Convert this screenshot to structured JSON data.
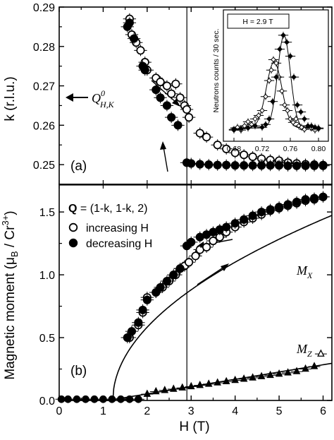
{
  "chart_data": [
    {
      "panel": "(a)",
      "type": "scatter",
      "xlabel": "",
      "ylabel": "k (r.l.u.)",
      "xlim": [
        0,
        6.2
      ],
      "ylim": [
        0.245,
        0.29
      ],
      "yticks": [
        "0.25",
        "0.26",
        "0.27",
        "0.28",
        "0.29"
      ],
      "annotation_main": "Q",
      "annotation_sup": "0",
      "annotation_sub": "H,K",
      "series": [
        {
          "marker": "open-circle",
          "points": [
            [
              1.6,
              0.287
            ],
            [
              1.65,
              0.283
            ],
            [
              1.75,
              0.281
            ],
            [
              1.85,
              0.279
            ],
            [
              1.95,
              0.276
            ],
            [
              2.0,
              0.274
            ],
            [
              2.2,
              0.272
            ],
            [
              2.3,
              0.271
            ],
            [
              2.45,
              0.27
            ],
            [
              2.55,
              0.268
            ],
            [
              2.65,
              0.2705
            ],
            [
              2.75,
              0.267
            ],
            [
              2.85,
              0.265
            ],
            [
              2.9,
              0.264
            ],
            [
              2.95,
              0.262
            ],
            [
              3.2,
              0.258
            ],
            [
              3.35,
              0.257
            ],
            [
              3.6,
              0.255
            ],
            [
              3.8,
              0.254
            ],
            [
              4.0,
              0.253
            ],
            [
              4.2,
              0.2525
            ],
            [
              4.4,
              0.252
            ],
            [
              4.6,
              0.2515
            ],
            [
              4.8,
              0.2512
            ],
            [
              5.0,
              0.251
            ],
            [
              5.2,
              0.2505
            ],
            [
              5.4,
              0.2503
            ],
            [
              5.6,
              0.2501
            ],
            [
              5.8,
              0.25
            ],
            [
              6.0,
              0.2499
            ]
          ]
        },
        {
          "marker": "filled-circle",
          "points": [
            [
              1.55,
              0.285
            ],
            [
              1.6,
              0.286
            ],
            [
              1.7,
              0.282
            ],
            [
              1.9,
              0.275
            ],
            [
              1.95,
              0.274
            ],
            [
              2.2,
              0.269
            ],
            [
              2.3,
              0.267
            ],
            [
              2.45,
              0.265
            ],
            [
              2.55,
              0.262
            ],
            [
              2.7,
              0.26
            ],
            [
              2.9,
              0.2505
            ],
            [
              3.0,
              0.2503
            ],
            [
              3.2,
              0.2501
            ],
            [
              3.4,
              0.25
            ],
            [
              3.6,
              0.2499
            ],
            [
              3.8,
              0.2499
            ],
            [
              4.0,
              0.2498
            ],
            [
              4.2,
              0.2498
            ],
            [
              4.4,
              0.2498
            ],
            [
              4.6,
              0.2498
            ],
            [
              4.8,
              0.2498
            ],
            [
              5.0,
              0.2498
            ],
            [
              5.2,
              0.2497
            ],
            [
              5.4,
              0.2497
            ],
            [
              5.6,
              0.2497
            ],
            [
              5.8,
              0.2497
            ],
            [
              6.0,
              0.2497
            ]
          ]
        }
      ]
    },
    {
      "panel": "(b)",
      "type": "scatter",
      "xlabel": "H (T)",
      "ylabel_main": "Magnetic moment (μ",
      "ylabel_sub": "B",
      "ylabel_tail": " / Cr",
      "ylabel_sup": "3+",
      "xlim": [
        0,
        6.2
      ],
      "ylim": [
        0,
        1.72
      ],
      "xticks": [
        "0",
        "1",
        "2",
        "3",
        "4",
        "5",
        "6"
      ],
      "yticks": [
        "0.0",
        "0.5",
        "1.0",
        "1.5"
      ],
      "q_label_bold": "Q",
      "q_label_rest": " = (1-k, 1-k, 2)",
      "legend": [
        "increasing H",
        "decreasing H"
      ],
      "mx_label": "M",
      "mx_sub": "X",
      "mz_label": "M",
      "mz_sub": "Z",
      "series": [
        {
          "name": "increasing H",
          "marker": "open-circle",
          "points": [
            [
              1.6,
              0.5
            ],
            [
              1.8,
              0.6
            ],
            [
              1.9,
              0.7
            ],
            [
              2.0,
              0.82
            ],
            [
              2.2,
              0.86
            ],
            [
              2.35,
              0.9
            ],
            [
              2.5,
              0.95
            ],
            [
              2.65,
              1.0
            ],
            [
              2.75,
              1.05
            ],
            [
              2.85,
              1.07
            ],
            [
              2.95,
              1.1
            ],
            [
              3.1,
              1.15
            ],
            [
              3.2,
              1.2
            ],
            [
              3.35,
              1.22
            ],
            [
              3.5,
              1.27
            ],
            [
              3.65,
              1.3
            ],
            [
              3.8,
              1.34
            ],
            [
              4.0,
              1.38
            ],
            [
              4.2,
              1.42
            ],
            [
              4.4,
              1.45
            ],
            [
              4.6,
              1.48
            ],
            [
              4.8,
              1.51
            ],
            [
              5.0,
              1.53
            ],
            [
              5.2,
              1.55
            ],
            [
              5.4,
              1.57
            ],
            [
              5.6,
              1.59
            ],
            [
              5.8,
              1.6
            ],
            [
              6.0,
              1.62
            ]
          ]
        },
        {
          "name": "decreasing H",
          "marker": "filled-circle",
          "points": [
            [
              1.55,
              0.5
            ],
            [
              1.65,
              0.55
            ],
            [
              1.8,
              0.62
            ],
            [
              1.9,
              0.72
            ],
            [
              2.0,
              0.8
            ],
            [
              2.2,
              0.86
            ],
            [
              2.3,
              0.9
            ],
            [
              2.45,
              0.95
            ],
            [
              2.6,
              1.0
            ],
            [
              2.75,
              1.05
            ],
            [
              2.9,
              1.23
            ],
            [
              3.0,
              1.26
            ],
            [
              3.2,
              1.3
            ],
            [
              3.35,
              1.32
            ],
            [
              3.5,
              1.34
            ],
            [
              3.65,
              1.36
            ],
            [
              3.8,
              1.38
            ],
            [
              4.0,
              1.41
            ],
            [
              4.2,
              1.44
            ],
            [
              4.4,
              1.47
            ],
            [
              4.6,
              1.5
            ],
            [
              4.8,
              1.52
            ],
            [
              5.0,
              1.54
            ],
            [
              5.2,
              1.56
            ],
            [
              5.4,
              1.58
            ],
            [
              5.6,
              1.6
            ],
            [
              5.8,
              1.61
            ],
            [
              6.0,
              1.62
            ]
          ]
        },
        {
          "name": "Mz",
          "marker": "filled-triangle",
          "points": [
            [
              2.0,
              0.05
            ],
            [
              2.2,
              0.07
            ],
            [
              2.4,
              0.08
            ],
            [
              2.6,
              0.09
            ],
            [
              2.8,
              0.1
            ],
            [
              3.0,
              0.11
            ],
            [
              3.2,
              0.12
            ],
            [
              3.4,
              0.13
            ],
            [
              3.6,
              0.14
            ],
            [
              3.8,
              0.15
            ],
            [
              4.0,
              0.16
            ],
            [
              4.2,
              0.17
            ],
            [
              4.4,
              0.18
            ],
            [
              4.6,
              0.19
            ],
            [
              4.8,
              0.2
            ],
            [
              5.0,
              0.21
            ],
            [
              5.2,
              0.22
            ],
            [
              5.4,
              0.23
            ],
            [
              5.6,
              0.25
            ],
            [
              5.8,
              0.27
            ]
          ]
        },
        {
          "name": "Mz-open",
          "marker": "open-triangle",
          "points": [
            [
              5.95,
              0.37
            ]
          ]
        }
      ]
    },
    {
      "panel": "inset",
      "type": "scatter",
      "title": "H = 2.9 T",
      "xlabel": "Q",
      "xlabel_sub": "HK",
      "xlabel_tail": " (r.l.u.)",
      "ylabel": "Neutrons counts / 30 sec.",
      "xlim": [
        0.67,
        0.81
      ],
      "ylim": [
        0,
        1600
      ],
      "xticks": [
        "0.68",
        "0.72",
        "0.76",
        "0.80"
      ],
      "series": [
        {
          "marker": "open-diamond",
          "points": [
            [
              0.68,
              150
            ],
            [
              0.685,
              180
            ],
            [
              0.69,
              140
            ],
            [
              0.695,
              200
            ],
            [
              0.7,
              260
            ],
            [
              0.705,
              220
            ],
            [
              0.71,
              300
            ],
            [
              0.715,
              350
            ],
            [
              0.72,
              420
            ],
            [
              0.725,
              620
            ],
            [
              0.73,
              850
            ],
            [
              0.733,
              1000
            ],
            [
              0.736,
              1150
            ],
            [
              0.74,
              1100
            ],
            [
              0.744,
              900
            ],
            [
              0.748,
              700
            ],
            [
              0.752,
              500
            ],
            [
              0.756,
              420
            ],
            [
              0.76,
              300
            ],
            [
              0.764,
              250
            ],
            [
              0.768,
              300
            ],
            [
              0.772,
              200
            ],
            [
              0.776,
              180
            ],
            [
              0.78,
              150
            ],
            [
              0.785,
              200
            ],
            [
              0.79,
              170
            ],
            [
              0.795,
              140
            ],
            [
              0.8,
              160
            ]
          ]
        },
        {
          "marker": "filled-diamond",
          "points": [
            [
              0.68,
              140
            ],
            [
              0.69,
              160
            ],
            [
              0.7,
              170
            ],
            [
              0.71,
              200
            ],
            [
              0.72,
              180
            ],
            [
              0.725,
              220
            ],
            [
              0.73,
              300
            ],
            [
              0.735,
              550
            ],
            [
              0.74,
              900
            ],
            [
              0.745,
              1300
            ],
            [
              0.75,
              1500
            ],
            [
              0.755,
              1400
            ],
            [
              0.76,
              1200
            ],
            [
              0.765,
              900
            ],
            [
              0.77,
              500
            ],
            [
              0.775,
              400
            ],
            [
              0.78,
              300
            ],
            [
              0.785,
              200
            ],
            [
              0.79,
              200
            ],
            [
              0.795,
              180
            ],
            [
              0.8,
              170
            ]
          ]
        }
      ]
    }
  ]
}
